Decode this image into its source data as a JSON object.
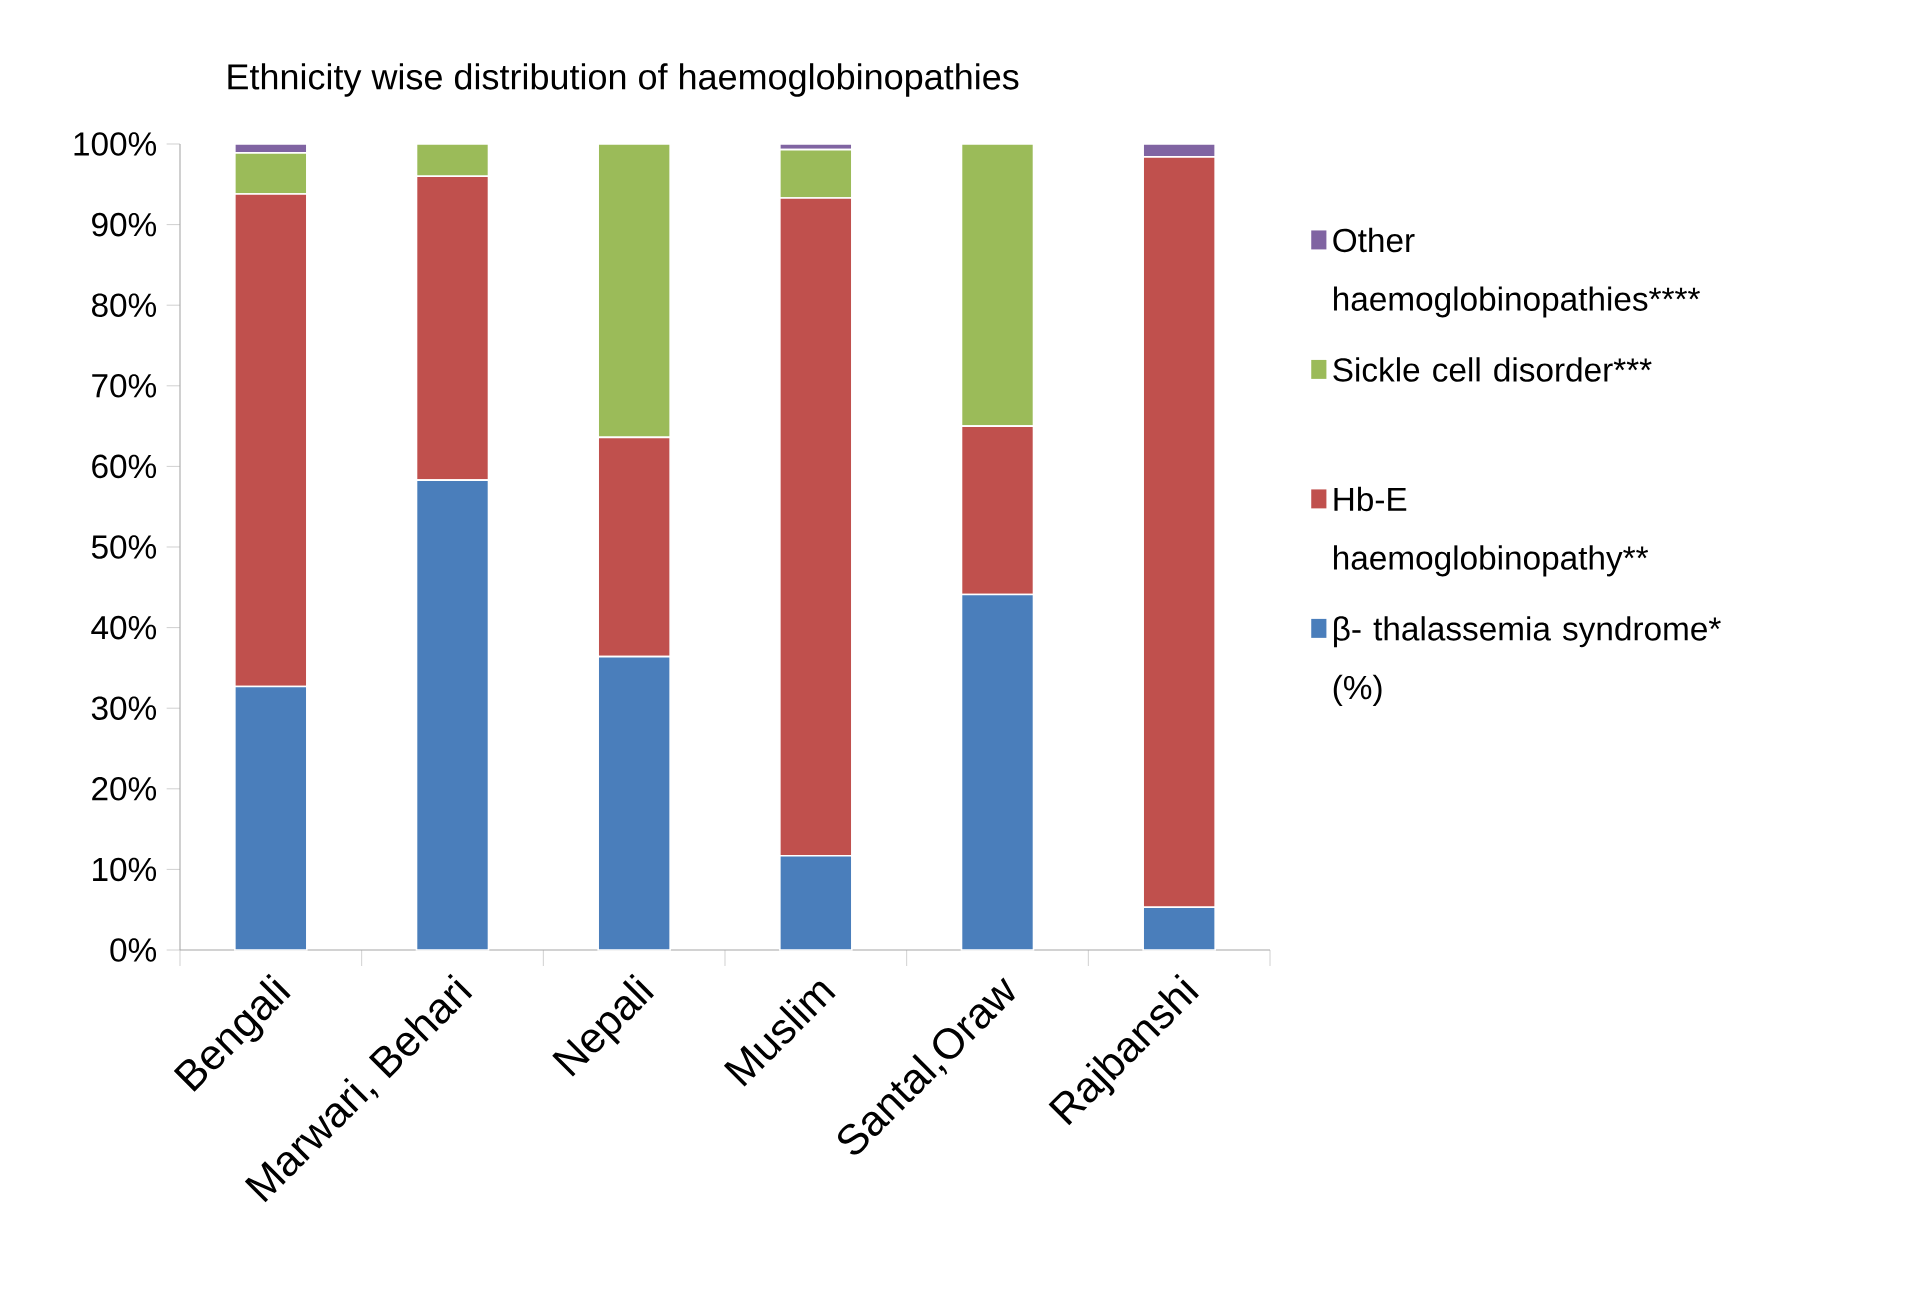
{
  "chart_data": {
    "type": "bar",
    "stacked": true,
    "title": "Ethnicity wise distribution of haemoglobinopathies",
    "categories": [
      "Bengali",
      "Marwari, Behari",
      "Nepali",
      "Muslim",
      "Santal,Oraw",
      "Rajbanshi"
    ],
    "series": [
      {
        "name": "β- thalassemia syndrome* (%)",
        "color": "#4a7ebb",
        "values": [
          32.7,
          58.3,
          36.4,
          11.7,
          44.1,
          5.3
        ]
      },
      {
        "name": "Hb-E haemoglobinopathy**",
        "color": "#c0504d",
        "values": [
          61.1,
          37.7,
          27.2,
          81.6,
          20.9,
          93.1
        ]
      },
      {
        "name": "Sickle cell disorder***",
        "color": "#9bbb59",
        "values": [
          5.1,
          4.0,
          36.4,
          6.0,
          35.0,
          null
        ]
      },
      {
        "name": "Other haemoglobinopathies****",
        "color": "#8064a2",
        "values": [
          1.1,
          0,
          0,
          0.7,
          0,
          1.6
        ]
      }
    ],
    "ylim": [
      0,
      100
    ],
    "yticks": [
      {
        "value": 0,
        "label": "0%"
      },
      {
        "value": 10,
        "label": "10%"
      },
      {
        "value": 20,
        "label": "20%"
      },
      {
        "value": 30,
        "label": "30%"
      },
      {
        "value": 40,
        "label": "40%"
      },
      {
        "value": 50,
        "label": "50%"
      },
      {
        "value": 60,
        "label": "60%"
      },
      {
        "value": 70,
        "label": "70%"
      },
      {
        "value": 80,
        "label": "80%"
      },
      {
        "value": 90,
        "label": "90%"
      },
      {
        "value": 100,
        "label": "100%"
      }
    ],
    "grid": false,
    "legend": "right"
  }
}
